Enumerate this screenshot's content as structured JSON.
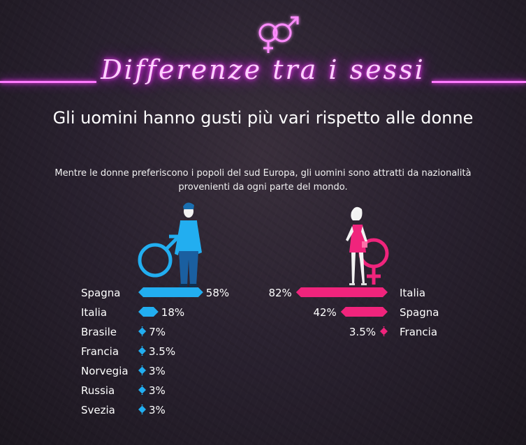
{
  "header": {
    "title": "Differenze tra i sessi",
    "subtitle": "Gli uomini hanno gusti più vari rispetto alle donne",
    "description": "Mentre le donne preferiscono i popoli del sud Europa, gli uomini sono attratti da nazionalità provenienti da ogni parte del mondo."
  },
  "colors": {
    "men": "#22aef0",
    "women": "#f0247c",
    "neon": "#ff7bff"
  },
  "icons": [
    "gender-symbols-icon",
    "man-figure-icon",
    "male-symbol-icon",
    "woman-figure-icon",
    "female-symbol-icon"
  ],
  "chart_data": [
    {
      "type": "bar",
      "orientation": "horizontal",
      "categories": [
        "Spagna",
        "Italia",
        "Brasile",
        "Francia",
        "Norvegia",
        "Russia",
        "Svezia"
      ],
      "values": [
        58,
        18,
        7,
        3.5,
        3,
        3,
        3
      ],
      "value_labels": [
        "58%",
        "18%",
        "7%",
        "3.5%",
        "3%",
        "3%",
        "3%"
      ],
      "series_color": "#22aef0"
    },
    {
      "type": "bar",
      "orientation": "horizontal",
      "direction": "right-to-left",
      "categories": [
        "Italia",
        "Spagna",
        "Francia"
      ],
      "values": [
        82,
        42,
        3.5
      ],
      "value_labels": [
        "82%",
        "42%",
        "3.5%"
      ],
      "series_color": "#f0247c"
    }
  ]
}
